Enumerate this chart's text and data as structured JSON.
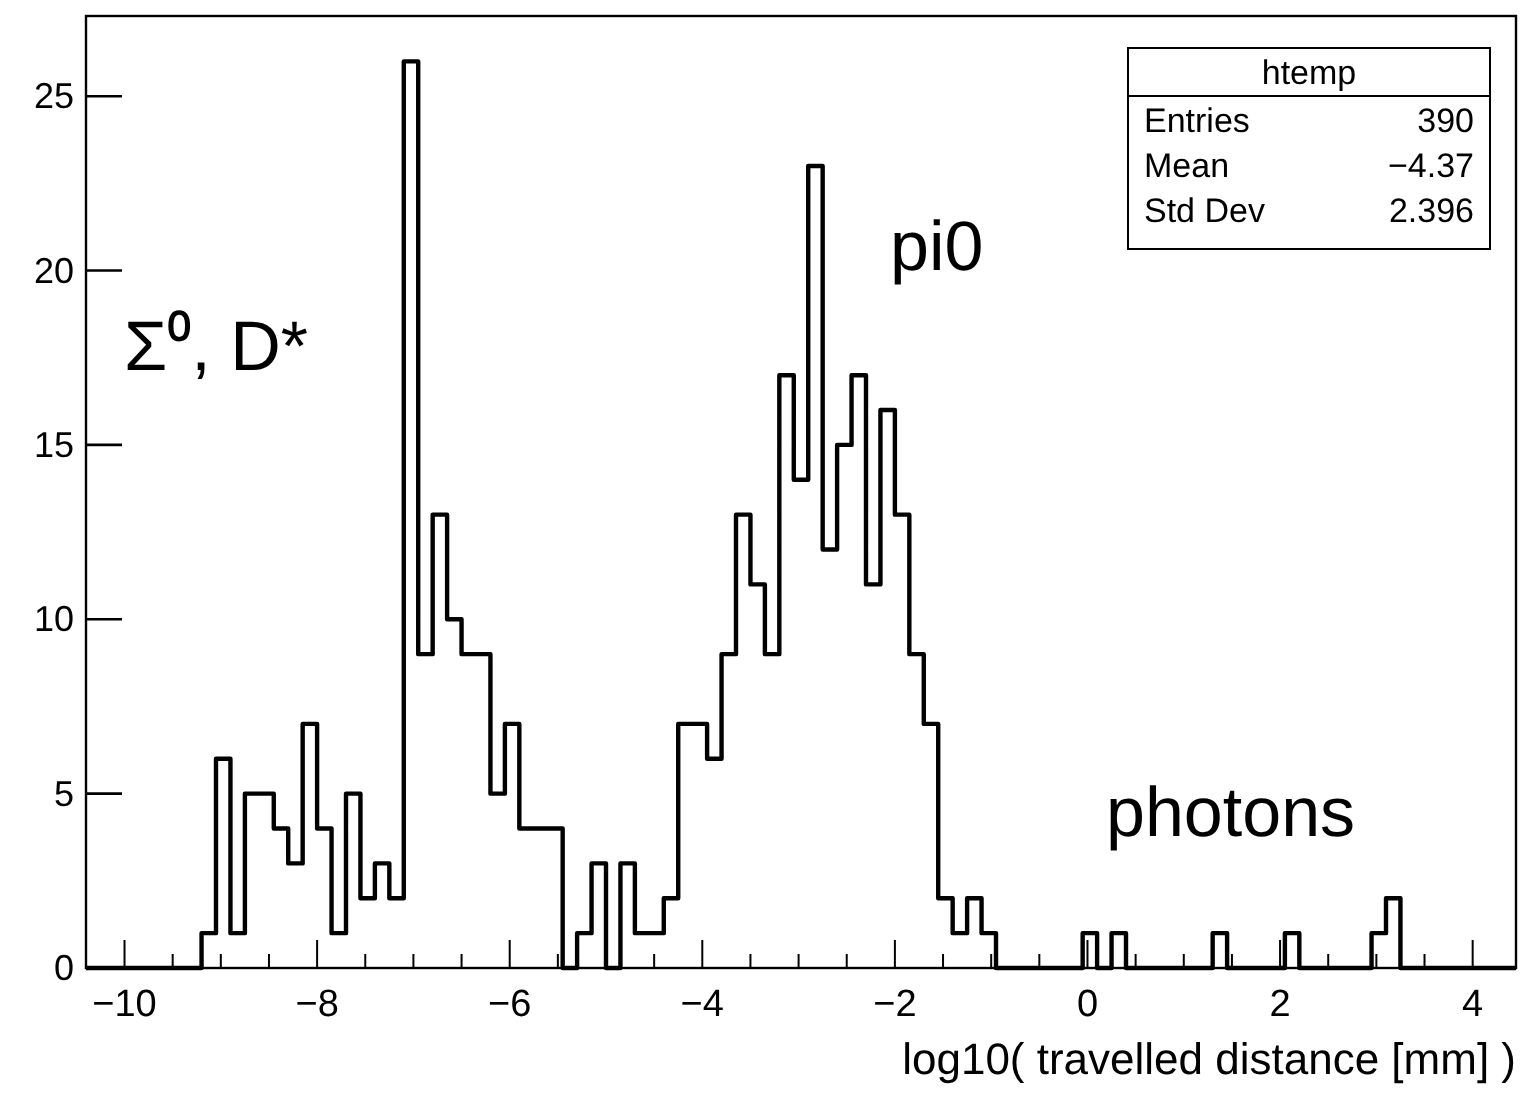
{
  "chart_data": {
    "type": "histogram",
    "xlabel": "log10( travelled distance [mm] )",
    "bins": [
      -10.4,
      -10.25,
      -10.1,
      -9.95,
      -9.8,
      -9.65,
      -9.5,
      -9.35,
      -9.2,
      -9.05,
      -8.9,
      -8.75,
      -8.6,
      -8.45,
      -8.3,
      -8.15,
      -8,
      -7.85,
      -7.7,
      -7.55,
      -7.4,
      -7.25,
      -7.1,
      -6.95,
      -6.8,
      -6.65,
      -6.5,
      -6.35,
      -6.2,
      -6.05,
      -5.9,
      -5.75,
      -5.6,
      -5.45,
      -5.3,
      -5.15,
      -5,
      -4.85,
      -4.7,
      -4.55,
      -4.4,
      -4.25,
      -4.1,
      -3.95,
      -3.8,
      -3.65,
      -3.5,
      -3.35,
      -3.2,
      -3.05,
      -2.9,
      -2.75,
      -2.6,
      -2.45,
      -2.3,
      -2.15,
      -2,
      -1.85,
      -1.7,
      -1.55,
      -1.4,
      -1.25,
      -1.1,
      -0.95,
      -0.8,
      -0.65,
      -0.5,
      -0.35,
      -0.2,
      -0.05,
      0.1,
      0.25,
      0.4,
      0.55,
      0.7,
      0.85,
      1,
      1.15,
      1.3,
      1.45,
      1.6,
      1.75,
      1.9,
      2.05,
      2.2,
      2.35,
      2.5,
      2.65,
      2.8,
      2.95,
      3.1,
      3.25,
      3.4,
      3.55,
      3.7,
      3.85,
      4,
      4.15,
      4.3,
      4.45
    ],
    "values": [
      0,
      0,
      0,
      0,
      0,
      0,
      0,
      0,
      1,
      6,
      1,
      5,
      5,
      4,
      3,
      7,
      4,
      1,
      5,
      2,
      3,
      2,
      26,
      9,
      13,
      10,
      9,
      9,
      5,
      7,
      4,
      4,
      4,
      0,
      1,
      3,
      0,
      3,
      1,
      1,
      2,
      7,
      7,
      6,
      9,
      13,
      11,
      9,
      17,
      14,
      23,
      12,
      15,
      17,
      11,
      16,
      13,
      9,
      7,
      2,
      1,
      2,
      1,
      0,
      0,
      0,
      0,
      0,
      0,
      1,
      0,
      1,
      0,
      0,
      0,
      0,
      0,
      0,
      1,
      0,
      0,
      0,
      0,
      1,
      0,
      0,
      0,
      0,
      0,
      1,
      2,
      0,
      0,
      0,
      0,
      0,
      0,
      0,
      0
    ],
    "color": "#000000",
    "xlim": [
      -10.4,
      4.45
    ],
    "ylim": [
      0,
      27.3
    ],
    "xticks": [
      -10,
      {
        "value": -9.5,
        "label": null
      },
      {
        "value": -9,
        "label": null
      },
      {
        "value": -8.5,
        "label": null
      },
      -8,
      {
        "value": -7.5,
        "label": null
      },
      {
        "value": -7,
        "label": null
      },
      {
        "value": -6.5,
        "label": null
      },
      -6,
      {
        "value": -5.5,
        "label": null
      },
      {
        "value": -5,
        "label": null
      },
      {
        "value": -4.5,
        "label": null
      },
      -4,
      {
        "value": -3.5,
        "label": null
      },
      {
        "value": -3,
        "label": null
      },
      {
        "value": -2.5,
        "label": null
      },
      -2,
      {
        "value": -1.5,
        "label": null
      },
      {
        "value": -1,
        "label": null
      },
      {
        "value": -0.5,
        "label": null
      },
      0,
      {
        "value": 0.5,
        "label": null
      },
      {
        "value": 1,
        "label": null
      },
      {
        "value": 1.5,
        "label": null
      },
      2,
      {
        "value": 2.5,
        "label": null
      },
      {
        "value": 3,
        "label": null
      },
      {
        "value": 3.5,
        "label": null
      },
      4
    ],
    "yticks": [
      0,
      5,
      10,
      15,
      20,
      25
    ],
    "annotations": [
      "Σ⁰, D*",
      "pi0",
      "photons",
      "htemp",
      "Entries",
      "390",
      "Mean",
      "−4.37",
      "Std Dev",
      "2.396"
    ]
  }
}
